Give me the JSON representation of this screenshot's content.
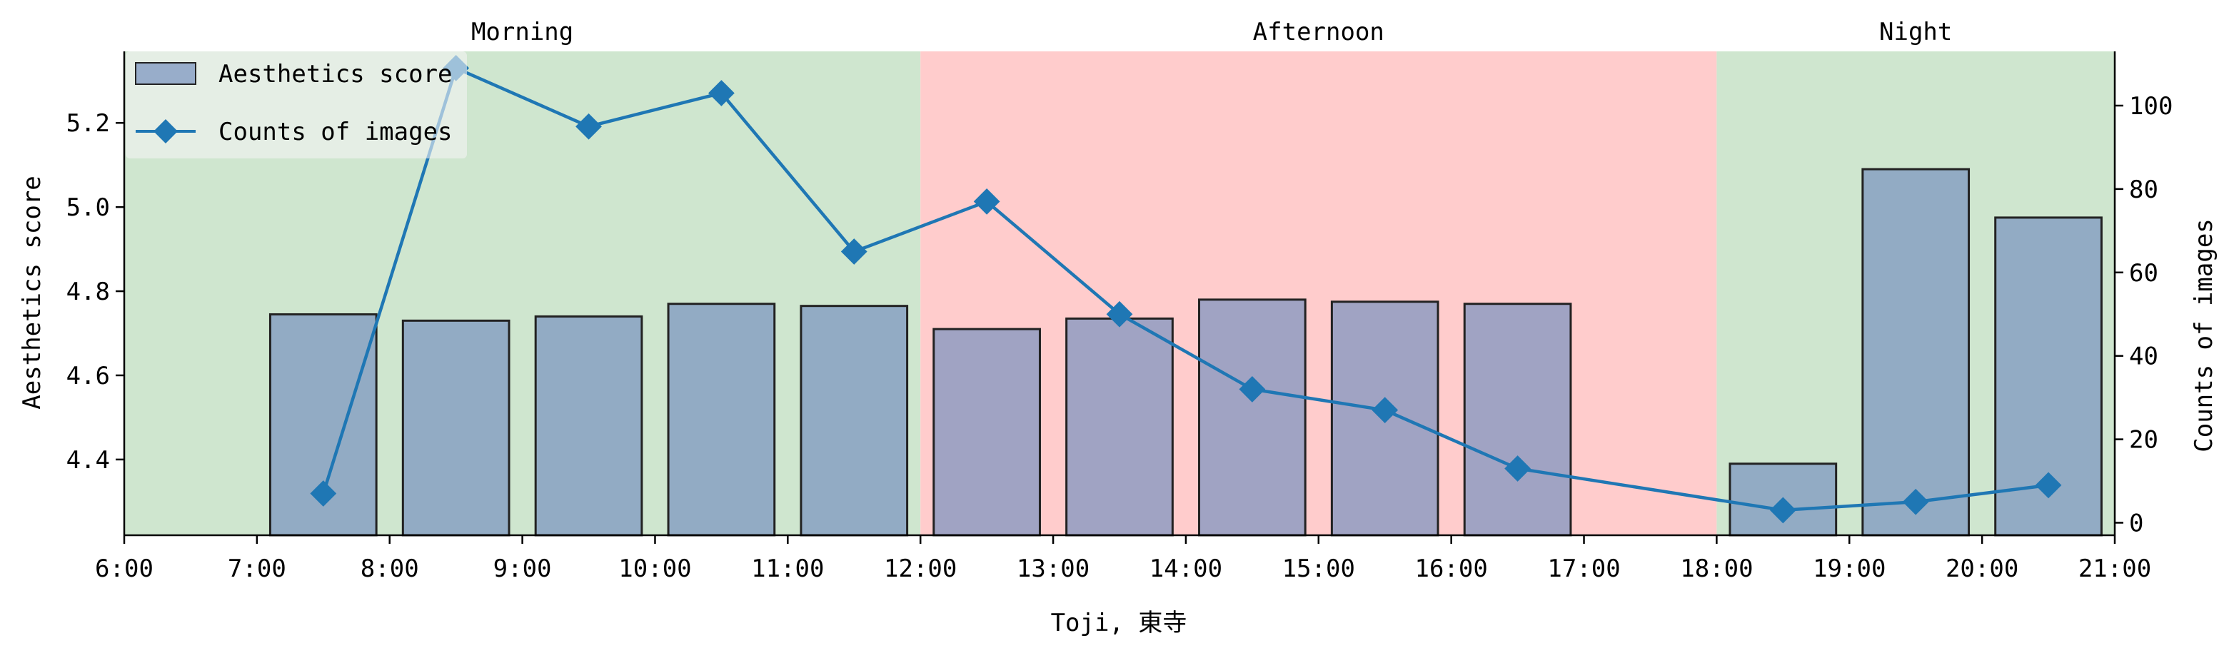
{
  "chart_data": {
    "type": "bar+line",
    "xlabel": "Toji, 東寺",
    "x_ticks": [
      "6:00",
      "7:00",
      "8:00",
      "9:00",
      "10:00",
      "11:00",
      "12:00",
      "13:00",
      "14:00",
      "15:00",
      "16:00",
      "17:00",
      "18:00",
      "19:00",
      "20:00",
      "21:00"
    ],
    "xlim_hours": [
      6,
      21
    ],
    "periods": [
      {
        "label": "Morning",
        "start": 6,
        "end": 12,
        "color": "#cfe6cf"
      },
      {
        "label": "Afternoon",
        "start": 12,
        "end": 18,
        "color": "#ffcccc"
      },
      {
        "label": "Night",
        "start": 18,
        "end": 21,
        "color": "#cfe6cf"
      }
    ],
    "y_left": {
      "label": "Aesthetics score",
      "lim": [
        4.22,
        5.37
      ],
      "ticks": [
        4.4,
        4.6,
        4.8,
        5.0,
        5.2
      ],
      "tick_labels": [
        "4.4",
        "4.6",
        "4.8",
        "5.0",
        "5.2"
      ]
    },
    "y_right": {
      "label": "Counts of images",
      "lim": [
        -3,
        113
      ],
      "ticks": [
        0,
        20,
        40,
        60,
        80,
        100
      ],
      "tick_labels": [
        "0",
        "20",
        "40",
        "60",
        "80",
        "100"
      ]
    },
    "bar_series": {
      "name": "Aesthetics score",
      "color": "#7891bf",
      "edge_color": "#222222",
      "x": [
        7.5,
        8.5,
        9.5,
        10.5,
        11.5,
        12.5,
        13.5,
        14.5,
        15.5,
        16.5,
        18.5,
        19.5,
        20.5
      ],
      "values": [
        4.745,
        4.73,
        4.74,
        4.77,
        4.765,
        4.71,
        4.735,
        4.78,
        4.775,
        4.77,
        4.39,
        5.09,
        4.975
      ]
    },
    "line_series": {
      "name": "Counts of images",
      "color": "#1f77b4",
      "x": [
        7.5,
        8.5,
        9.5,
        10.5,
        11.5,
        12.5,
        13.5,
        14.5,
        15.5,
        16.5,
        18.5,
        19.5,
        20.5
      ],
      "values": [
        7,
        109,
        95,
        103,
        65,
        77,
        50,
        32,
        27,
        13,
        3,
        5,
        9
      ]
    },
    "legend": {
      "position": "top-left"
    }
  }
}
